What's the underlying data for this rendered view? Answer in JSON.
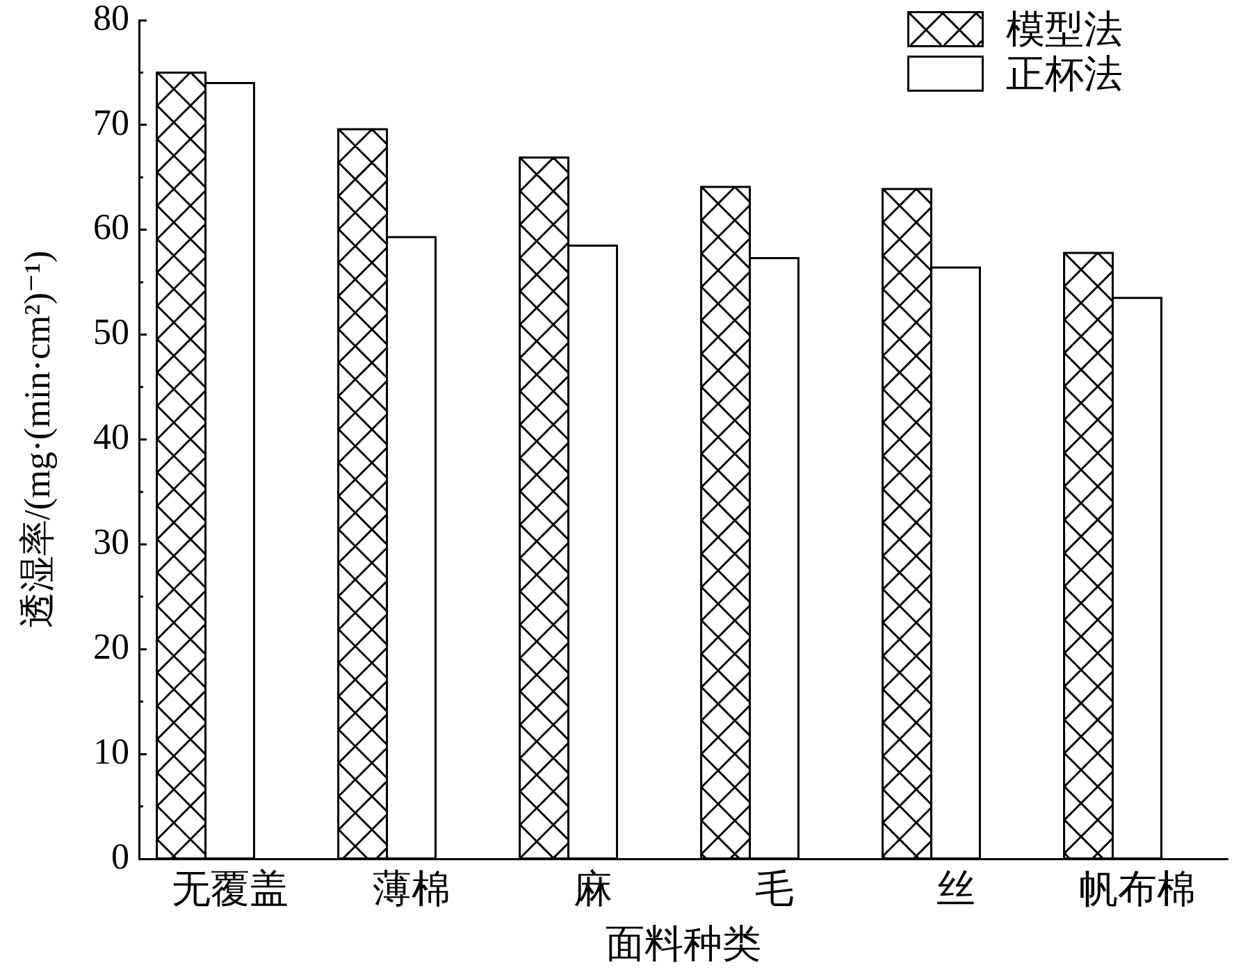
{
  "chart_data": {
    "type": "bar",
    "xlabel": "面料种类",
    "ylabel": "透湿率/(mg·(min·cm²)⁻¹)",
    "categories": [
      "无覆盖",
      "薄棉",
      "麻",
      "毛",
      "丝",
      "帆布棉"
    ],
    "series": [
      {
        "name": "模型法",
        "color": "#ffffff",
        "values": [
          75,
          69.6,
          66.9,
          64.1,
          63.9,
          57.8
        ]
      },
      {
        "name": "正杯法",
        "color": "#ffffff",
        "values": [
          74,
          59.3,
          58.5,
          57.3,
          56.4,
          53.5
        ]
      }
    ],
    "ylim": [
      0,
      80
    ],
    "yticks": [
      0,
      {
        "value": 5,
        "label": null
      },
      10,
      {
        "value": 15,
        "label": null
      },
      20,
      {
        "value": 25,
        "label": null
      },
      30,
      {
        "value": 35,
        "label": null
      },
      40,
      {
        "value": 45,
        "label": null
      },
      50,
      {
        "value": 55,
        "label": null
      },
      60,
      {
        "value": 65,
        "label": null
      },
      70,
      {
        "value": 75,
        "label": null
      },
      80
    ],
    "legend": "top right"
  }
}
